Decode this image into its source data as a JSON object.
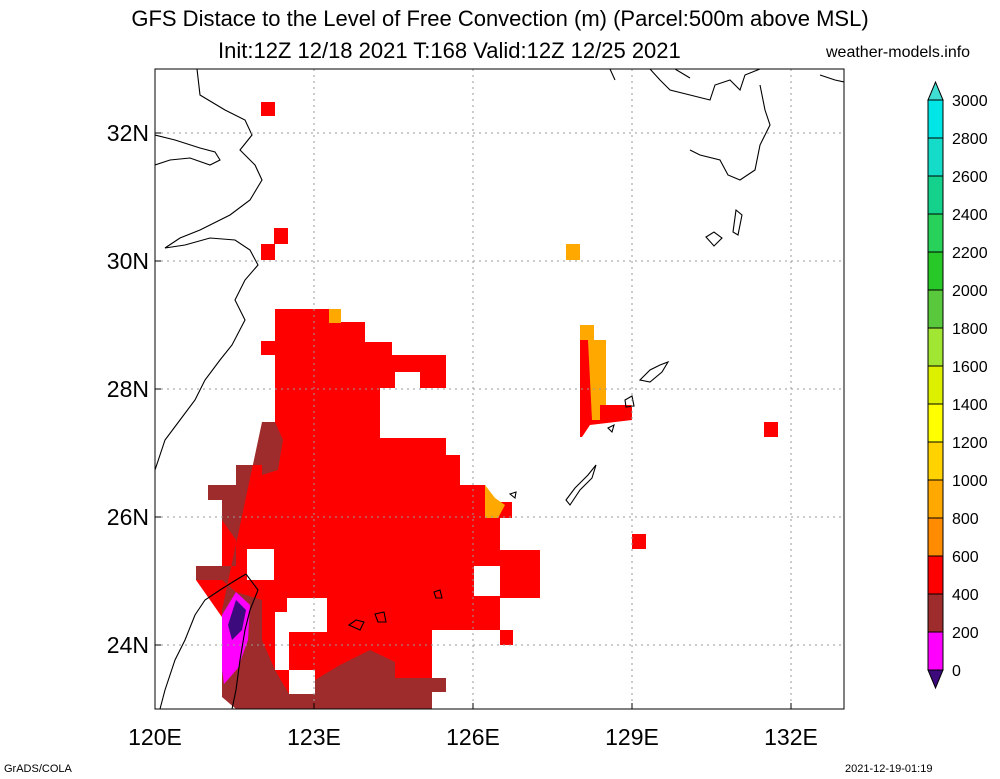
{
  "header": {
    "title": "GFS Distace to the Level of Free Convection (m) (Parcel:500m above MSL)",
    "subtitle": "Init:12Z 12/18 2021 T:168 Valid:12Z 12/25 2021",
    "site": "weather-models.info"
  },
  "footer": {
    "left": "GrADS/COLA",
    "right": "2021-12-19-01:19"
  },
  "map": {
    "lon_range": [
      120,
      133
    ],
    "lat_range": [
      23,
      33
    ],
    "lon_ticks": [
      {
        "value": 120,
        "label": "120E"
      },
      {
        "value": 123,
        "label": "123E"
      },
      {
        "value": 126,
        "label": "126E"
      },
      {
        "value": 129,
        "label": "129E"
      },
      {
        "value": 132,
        "label": "132E"
      }
    ],
    "lat_ticks": [
      {
        "value": 24,
        "label": "24N"
      },
      {
        "value": 26,
        "label": "26N"
      },
      {
        "value": 28,
        "label": "28N"
      },
      {
        "value": 30,
        "label": "30N"
      },
      {
        "value": 32,
        "label": "32N"
      }
    ],
    "grid": true
  },
  "colorbar": {
    "labels": [
      "0",
      "200",
      "400",
      "600",
      "800",
      "1000",
      "1200",
      "1400",
      "1600",
      "1800",
      "2000",
      "2200",
      "2400",
      "2600",
      "2800",
      "3000"
    ],
    "colors": [
      "#3c0a7d",
      "#ff00ff",
      "#9f2c2c",
      "#ff0000",
      "#ff8c00",
      "#ffa800",
      "#ffd200",
      "#ffff00",
      "#dcf000",
      "#a0e632",
      "#5ac83c",
      "#28c828",
      "#28d25a",
      "#14d28c",
      "#14dcc8",
      "#00e6e6"
    ],
    "low_color": "#3c0a7d",
    "high_color": "#40ddd2"
  },
  "colors": {
    "coast": "#000000",
    "grid": "#9a9a9a"
  }
}
